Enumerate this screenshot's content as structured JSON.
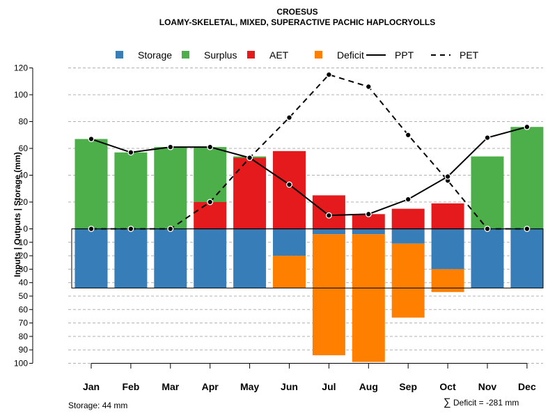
{
  "chart_data": {
    "type": "bar",
    "title": "CROESUS",
    "subtitle": "LOAMY-SKELETAL, MIXED, SUPERACTIVE PACHIC HAPLOCRYOLLS",
    "ylabel": "Inputs | Outputs | Storage    (mm)",
    "ylim_top": [
      0,
      120
    ],
    "ylim_bottom": [
      0,
      100
    ],
    "yticks_top": [
      0,
      20,
      40,
      60,
      80,
      100,
      120
    ],
    "yticks_bottom": [
      10,
      20,
      30,
      40,
      50,
      60,
      70,
      80,
      90,
      100
    ],
    "categories": [
      "Jan",
      "Feb",
      "Mar",
      "Apr",
      "May",
      "Jun",
      "Jul",
      "Aug",
      "Sep",
      "Oct",
      "Nov",
      "Dec"
    ],
    "legend": [
      {
        "name": "Storage",
        "kind": "box",
        "color": "#377EB8"
      },
      {
        "name": "Surplus",
        "kind": "box",
        "color": "#4DAF4A"
      },
      {
        "name": "AET",
        "kind": "box",
        "color": "#E41A1C"
      },
      {
        "name": "Deficit",
        "kind": "box",
        "color": "#FF7F00"
      },
      {
        "name": "PPT",
        "kind": "solid",
        "color": "#000000"
      },
      {
        "name": "PET",
        "kind": "dashed",
        "color": "#000000"
      }
    ],
    "series": [
      {
        "name": "AET",
        "color": "#E41A1C",
        "values": [
          0,
          0,
          0,
          20,
          53,
          58,
          25,
          11,
          15,
          19,
          0,
          0
        ]
      },
      {
        "name": "Surplus",
        "color": "#4DAF4A",
        "values": [
          67,
          57,
          61,
          41,
          1,
          0,
          0,
          0,
          0,
          0,
          54,
          76
        ]
      },
      {
        "name": "Storage",
        "color": "#377EB8",
        "values": [
          44,
          44,
          44,
          44,
          44,
          20,
          4,
          4,
          11,
          30,
          44,
          44
        ]
      },
      {
        "name": "Deficit",
        "color": "#FF7F00",
        "values": [
          0,
          0,
          0,
          0,
          0,
          24,
          90,
          95,
          55,
          17,
          0,
          0
        ]
      },
      {
        "name": "PPT",
        "color": "#000000",
        "values": [
          67,
          57,
          61,
          61,
          53,
          33,
          10,
          11,
          22,
          39,
          68,
          76
        ]
      },
      {
        "name": "PET",
        "color": "#000000",
        "values": [
          0,
          0,
          0,
          20,
          53,
          83,
          115,
          106,
          70,
          36,
          0,
          0
        ]
      }
    ],
    "storage_capacity": 44,
    "footnote_left": "Storage: 44 mm",
    "footnote_right_symbol": "∑",
    "footnote_right": "Deficit = -281 mm"
  }
}
